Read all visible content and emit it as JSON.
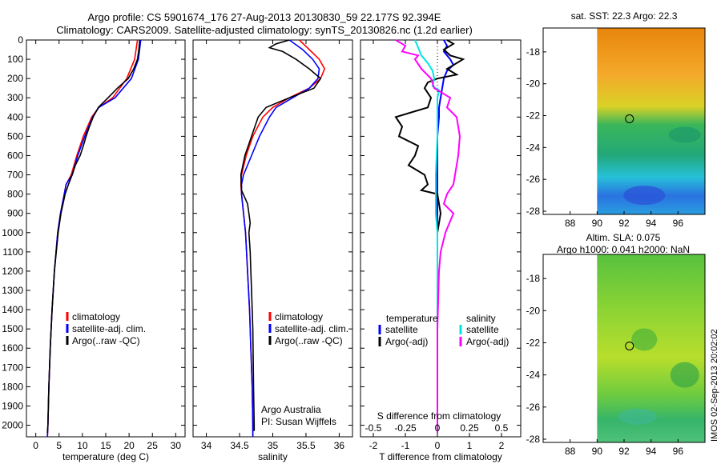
{
  "header": {
    "title_line1": "Argo profile: CS 5901674_176 27-Aug-2013 20130830_59 22.177S 92.394E",
    "title_line2": "Climatology: CARS2009. Satellite-adjusted climatology: synTS_20130826.nc (1.2d earlier)"
  },
  "colors": {
    "climatology": "#ff0000",
    "satellite": "#0000ff",
    "argo": "#000000",
    "argo_salinity": "#ff00ff",
    "satellite_salinity": "#00e5e5"
  },
  "chart_data": [
    {
      "type": "line",
      "xlabel": "temperature (deg C)",
      "ylabel": "",
      "xlim": [
        -2,
        32
      ],
      "ylim": [
        2060,
        0
      ],
      "xticks": [
        "0",
        "5",
        "10",
        "15",
        "20",
        "25",
        "30"
      ],
      "yticks": [
        "0",
        "100",
        "200",
        "300",
        "400",
        "500",
        "600",
        "700",
        "800",
        "900",
        "1000",
        "1100",
        "1200",
        "1300",
        "1400",
        "1500",
        "1600",
        "1700",
        "1800",
        "1900",
        "2000"
      ],
      "legend": [
        "climatology",
        "satellite-adj. clim.",
        "Argo(..raw -QC)"
      ],
      "series": [
        {
          "name": "climatology",
          "depth": [
            0,
            100,
            200,
            300,
            350,
            400,
            500,
            600,
            700,
            750,
            800,
            900,
            1000,
            1200,
            1400,
            1600,
            1800,
            2000,
            2060
          ],
          "values": [
            21.8,
            21.2,
            19.5,
            16.5,
            13.5,
            12.0,
            10.2,
            8.8,
            7.6,
            6.5,
            6.1,
            5.3,
            4.7,
            4.0,
            3.5,
            3.1,
            2.8,
            2.6,
            2.5
          ]
        },
        {
          "name": "satellite-adj. clim.",
          "depth": [
            0,
            100,
            200,
            300,
            350,
            400,
            500,
            600,
            700,
            750,
            800,
            900,
            1000,
            1200,
            1400,
            1600,
            1800,
            2000,
            2060
          ],
          "values": [
            22.5,
            22.0,
            20.5,
            17.0,
            13.5,
            12.2,
            10.5,
            9.0,
            7.8,
            6.5,
            6.1,
            5.3,
            4.7,
            4.0,
            3.5,
            3.1,
            2.8,
            2.6,
            2.5
          ]
        },
        {
          "name": "Argo(..raw -QC)",
          "depth": [
            0,
            50,
            100,
            150,
            200,
            250,
            300,
            350,
            400,
            450,
            500,
            550,
            600,
            650,
            700,
            750,
            800,
            900,
            1000,
            1200,
            1400,
            1600,
            1800,
            2000,
            2040
          ],
          "values": [
            22.3,
            22.1,
            21.8,
            21.0,
            19.8,
            17.5,
            15.5,
            13.4,
            12.3,
            11.5,
            10.8,
            10.2,
            9.5,
            8.5,
            7.8,
            7.0,
            6.3,
            5.4,
            4.8,
            4.0,
            3.5,
            3.1,
            2.8,
            2.6,
            2.5
          ]
        }
      ]
    },
    {
      "type": "line",
      "xlabel": "salinity",
      "ylabel": "",
      "xlim": [
        33.8,
        36.2
      ],
      "ylim": [
        2060,
        0
      ],
      "xticks": [
        "34",
        "34.5",
        "35",
        "35.5",
        "36"
      ],
      "legend": [
        "climatology",
        "satellite-adj. clim.",
        "Argo(..raw -QC)"
      ],
      "annotation": [
        "Argo Australia",
        "PI: Susan Wijffels"
      ],
      "series": [
        {
          "name": "climatology",
          "depth": [
            0,
            50,
            100,
            150,
            200,
            250,
            300,
            350,
            400,
            500,
            600,
            700,
            750,
            800,
            900,
            1000,
            1200,
            1400,
            1600,
            1800,
            2000,
            2060
          ],
          "values": [
            35.4,
            35.55,
            35.7,
            35.78,
            35.72,
            35.55,
            35.25,
            35.0,
            34.85,
            34.7,
            34.6,
            34.53,
            34.52,
            34.53,
            34.56,
            34.59,
            34.62,
            34.65,
            34.67,
            34.69,
            34.7,
            34.7
          ]
        },
        {
          "name": "satellite-adj. clim.",
          "depth": [
            0,
            50,
            100,
            150,
            200,
            250,
            300,
            350,
            400,
            500,
            600,
            700,
            750,
            800,
            900,
            1000,
            1200,
            1400,
            1600,
            1800,
            2000,
            2060
          ],
          "values": [
            35.25,
            35.45,
            35.6,
            35.7,
            35.68,
            35.55,
            35.3,
            35.05,
            34.95,
            34.8,
            34.68,
            34.56,
            34.53,
            34.53,
            34.56,
            34.59,
            34.62,
            34.65,
            34.67,
            34.69,
            34.7,
            34.7
          ]
        },
        {
          "name": "Argo(..raw -QC)",
          "depth": [
            0,
            20,
            40,
            60,
            100,
            150,
            200,
            250,
            300,
            350,
            400,
            500,
            600,
            700,
            780,
            850,
            900,
            950,
            1000,
            1100,
            1200,
            1300,
            1500,
            1800,
            2000,
            2030
          ],
          "values": [
            35.25,
            35.05,
            34.95,
            35.15,
            35.35,
            35.55,
            35.72,
            35.62,
            35.25,
            34.9,
            34.78,
            34.68,
            34.58,
            34.52,
            34.53,
            34.62,
            34.64,
            34.66,
            34.64,
            34.66,
            34.67,
            34.68,
            34.7,
            34.71,
            34.72,
            34.72
          ]
        }
      ]
    },
    {
      "type": "line",
      "xlabel": "T difference from climatology",
      "xlabel_top": "S difference from climatology",
      "xlim": [
        -2.4,
        2.6
      ],
      "ylim": [
        2060,
        0
      ],
      "xticks": [
        "-2",
        "-1",
        "0",
        "1",
        "2"
      ],
      "xticks_s": [
        "-0.5",
        "-0.25",
        "0",
        "0.25",
        "0.5"
      ],
      "legend_title_temperature": "temperature",
      "legend_title_salinity": "salinity",
      "legend_temperature": [
        "satellite",
        "Argo(-adj)"
      ],
      "legend_salinity": [
        "satellite",
        "Argo(-adj)"
      ],
      "series": [
        {
          "name": "temperature satellite",
          "depth": [
            0,
            30,
            60,
            100,
            130,
            160,
            200,
            250,
            300,
            350,
            400,
            500,
            600,
            700,
            800,
            900,
            1000,
            1200,
            1500,
            1800,
            2000,
            2040
          ],
          "values": [
            0.2,
            0.3,
            0.2,
            0.4,
            0.5,
            0.3,
            0.2,
            0.15,
            0.1,
            0.05,
            0.05,
            0.0,
            0.0,
            0.0,
            0.0,
            0.0,
            0.0,
            0.0,
            0.0,
            0.0,
            0.0,
            0.0
          ]
        },
        {
          "name": "temperature Argo(-adj)",
          "depth": [
            0,
            20,
            50,
            80,
            100,
            150,
            180,
            200,
            220,
            250,
            300,
            350,
            400,
            450,
            500,
            550,
            600,
            650,
            700,
            750,
            780,
            800,
            850,
            900,
            1000,
            1200,
            1500,
            1800,
            2000,
            2040
          ],
          "values": [
            0.3,
            0.5,
            0.2,
            0.4,
            0.8,
            0.3,
            0.6,
            0.0,
            -0.3,
            -0.4,
            -0.2,
            -0.3,
            -1.3,
            -1.1,
            -1.2,
            -0.6,
            -0.7,
            -0.9,
            -0.4,
            -0.3,
            -0.5,
            0.0,
            0.05,
            0.1,
            0.0,
            0.0,
            0.0,
            0.0,
            0.0,
            0.0
          ]
        },
        {
          "name": "salinity satellite",
          "depth": [
            0,
            40,
            80,
            120,
            160,
            200,
            240,
            260,
            300,
            400,
            500,
            700,
            900,
            1000,
            1200,
            1500,
            1800,
            2000,
            2040
          ],
          "values": [
            -0.7,
            -0.6,
            -0.5,
            -0.3,
            -0.15,
            -0.1,
            -0.15,
            0.05,
            0.0,
            0.0,
            0.0,
            -0.05,
            -0.05,
            0.0,
            0.0,
            0.0,
            0.0,
            0.0,
            0.0
          ]
        },
        {
          "name": "salinity Argo(-adj)",
          "depth": [
            0,
            30,
            60,
            80,
            100,
            150,
            200,
            250,
            300,
            350,
            400,
            500,
            600,
            700,
            750,
            800,
            850,
            900,
            1000,
            1100,
            1200,
            1500,
            1800,
            2000,
            2040
          ],
          "values": [
            -1.3,
            -1.0,
            -1.1,
            -0.6,
            -0.7,
            -0.5,
            -0.2,
            -0.1,
            0.4,
            0.3,
            0.6,
            0.7,
            0.65,
            0.55,
            0.5,
            0.3,
            0.2,
            0.5,
            0.25,
            0.1,
            0.05,
            0.0,
            0.0,
            0.0,
            0.0
          ]
        }
      ]
    },
    {
      "type": "heatmap",
      "title": "sat. SST: 22.3 Argo: 22.3",
      "xlim": [
        86,
        98
      ],
      "ylim": [
        -28.2,
        -16.5
      ],
      "xticks": [
        "88",
        "90",
        "92",
        "94",
        "96"
      ],
      "yticks": [
        "-18",
        "-20",
        "-22",
        "-24",
        "-26",
        "-28"
      ],
      "marker": {
        "lon": 92.4,
        "lat": -22.2
      },
      "data_lon_range": [
        90,
        98
      ]
    },
    {
      "type": "heatmap",
      "title_line1": "Altim. SLA: 0.075",
      "title_line2": "Argo h1000: 0.041 h2000: NaN",
      "xlim": [
        86,
        98
      ],
      "ylim": [
        -28.2,
        -16.5
      ],
      "xticks": [
        "88",
        "90",
        "92",
        "94",
        "96"
      ],
      "yticks": [
        "-18",
        "-20",
        "-22",
        "-24",
        "-26",
        "-28"
      ],
      "marker": {
        "lon": 92.4,
        "lat": -22.2
      },
      "data_lon_range": [
        90,
        98
      ]
    }
  ],
  "credit": "IMOS 02-Sep-2013 20:02:02"
}
